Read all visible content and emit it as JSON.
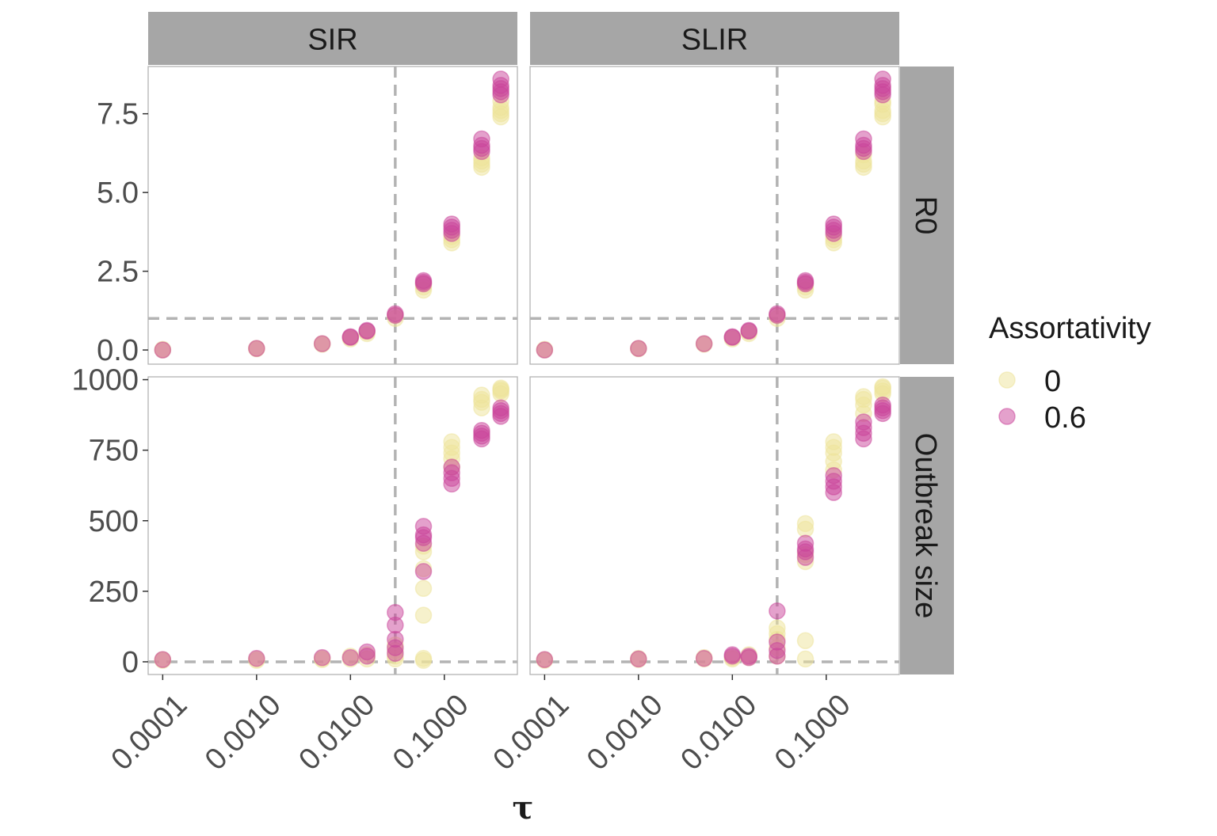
{
  "chart_data": {
    "type": "scatter",
    "xscale": "log",
    "xlabel": "τ",
    "ylabel": "",
    "facet_columns": [
      "SIR",
      "SLIR"
    ],
    "facet_rows": [
      "R0",
      "Outbreak size"
    ],
    "x_ticks": [
      0.0001,
      0.001,
      0.01,
      0.1
    ],
    "x_tick_labels": [
      "0.0001",
      "0.0010",
      "0.0100",
      "0.1000"
    ],
    "xlim": [
      7e-05,
      0.6
    ],
    "rows": [
      {
        "name": "R0",
        "ylim": [
          -0.45,
          9.0
        ],
        "y_ticks": [
          0,
          2.5,
          5,
          7.5
        ],
        "y_tick_labels": [
          "0.0",
          "2.5",
          "5.0",
          "7.5"
        ],
        "hline": 1,
        "vline": 0.03
      },
      {
        "name": "Outbreak size",
        "ylim": [
          -45,
          1010
        ],
        "y_ticks": [
          0,
          250,
          500,
          750,
          1000
        ],
        "y_tick_labels": [
          "0",
          "250",
          "500",
          "750",
          "1000"
        ],
        "hline": 0,
        "vline": 0.03
      }
    ],
    "legend": {
      "title": "Assortativity",
      "position": "right",
      "entries": [
        {
          "label": "0",
          "color": "#eee49a"
        },
        {
          "label": "0.6",
          "color": "#c9449a"
        }
      ]
    },
    "panels": [
      {
        "column": "SIR",
        "row": "R0",
        "series": [
          {
            "name": "0",
            "points": [
              [
                0.0001,
                0.0
              ],
              [
                0.0001,
                0.02
              ],
              [
                0.001,
                0.04
              ],
              [
                0.001,
                0.05
              ],
              [
                0.005,
                0.18
              ],
              [
                0.005,
                0.2
              ],
              [
                0.01,
                0.35
              ],
              [
                0.01,
                0.4
              ],
              [
                0.015,
                0.52
              ],
              [
                0.015,
                0.58
              ],
              [
                0.03,
                1.0
              ],
              [
                0.03,
                1.1
              ],
              [
                0.06,
                1.9
              ],
              [
                0.06,
                2.0
              ],
              [
                0.06,
                2.1
              ],
              [
                0.12,
                3.4
              ],
              [
                0.12,
                3.5
              ],
              [
                0.12,
                3.6
              ],
              [
                0.25,
                5.8
              ],
              [
                0.25,
                5.9
              ],
              [
                0.25,
                6.0
              ],
              [
                0.25,
                6.1
              ],
              [
                0.4,
                7.4
              ],
              [
                0.4,
                7.5
              ],
              [
                0.4,
                7.6
              ],
              [
                0.4,
                7.7
              ],
              [
                0.4,
                7.9
              ]
            ]
          },
          {
            "name": "0.6",
            "points": [
              [
                0.0001,
                0.0
              ],
              [
                0.001,
                0.05
              ],
              [
                0.005,
                0.2
              ],
              [
                0.01,
                0.4
              ],
              [
                0.01,
                0.42
              ],
              [
                0.015,
                0.6
              ],
              [
                0.015,
                0.62
              ],
              [
                0.03,
                1.1
              ],
              [
                0.03,
                1.15
              ],
              [
                0.06,
                2.1
              ],
              [
                0.06,
                2.15
              ],
              [
                0.06,
                2.2
              ],
              [
                0.12,
                3.7
              ],
              [
                0.12,
                3.8
              ],
              [
                0.12,
                3.9
              ],
              [
                0.12,
                4.0
              ],
              [
                0.25,
                6.3
              ],
              [
                0.25,
                6.4
              ],
              [
                0.25,
                6.5
              ],
              [
                0.25,
                6.7
              ],
              [
                0.4,
                8.1
              ],
              [
                0.4,
                8.2
              ],
              [
                0.4,
                8.3
              ],
              [
                0.4,
                8.4
              ],
              [
                0.4,
                8.6
              ]
            ]
          }
        ]
      },
      {
        "column": "SLIR",
        "row": "R0",
        "series": [
          {
            "name": "0",
            "points": [
              [
                0.0001,
                0.0
              ],
              [
                0.0001,
                0.02
              ],
              [
                0.001,
                0.04
              ],
              [
                0.001,
                0.05
              ],
              [
                0.005,
                0.18
              ],
              [
                0.005,
                0.2
              ],
              [
                0.01,
                0.35
              ],
              [
                0.01,
                0.4
              ],
              [
                0.015,
                0.52
              ],
              [
                0.015,
                0.58
              ],
              [
                0.03,
                1.0
              ],
              [
                0.03,
                1.1
              ],
              [
                0.06,
                1.9
              ],
              [
                0.06,
                2.0
              ],
              [
                0.06,
                2.1
              ],
              [
                0.12,
                3.4
              ],
              [
                0.12,
                3.5
              ],
              [
                0.12,
                3.6
              ],
              [
                0.25,
                5.8
              ],
              [
                0.25,
                5.9
              ],
              [
                0.25,
                6.0
              ],
              [
                0.25,
                6.2
              ],
              [
                0.4,
                7.4
              ],
              [
                0.4,
                7.5
              ],
              [
                0.4,
                7.6
              ],
              [
                0.4,
                7.8
              ],
              [
                0.4,
                7.9
              ]
            ]
          },
          {
            "name": "0.6",
            "points": [
              [
                0.0001,
                0.0
              ],
              [
                0.001,
                0.05
              ],
              [
                0.005,
                0.2
              ],
              [
                0.01,
                0.4
              ],
              [
                0.01,
                0.42
              ],
              [
                0.015,
                0.6
              ],
              [
                0.015,
                0.62
              ],
              [
                0.03,
                1.1
              ],
              [
                0.03,
                1.15
              ],
              [
                0.06,
                2.1
              ],
              [
                0.06,
                2.15
              ],
              [
                0.06,
                2.2
              ],
              [
                0.12,
                3.7
              ],
              [
                0.12,
                3.8
              ],
              [
                0.12,
                3.9
              ],
              [
                0.12,
                4.0
              ],
              [
                0.25,
                6.3
              ],
              [
                0.25,
                6.4
              ],
              [
                0.25,
                6.5
              ],
              [
                0.25,
                6.7
              ],
              [
                0.4,
                8.1
              ],
              [
                0.4,
                8.2
              ],
              [
                0.4,
                8.3
              ],
              [
                0.4,
                8.4
              ],
              [
                0.4,
                8.6
              ]
            ]
          }
        ]
      },
      {
        "column": "SIR",
        "row": "Outbreak size",
        "series": [
          {
            "name": "0",
            "points": [
              [
                0.0001,
                5
              ],
              [
                0.0001,
                8
              ],
              [
                0.001,
                5
              ],
              [
                0.001,
                10
              ],
              [
                0.005,
                8
              ],
              [
                0.005,
                12
              ],
              [
                0.01,
                10
              ],
              [
                0.01,
                20
              ],
              [
                0.015,
                10
              ],
              [
                0.015,
                25
              ],
              [
                0.03,
                10
              ],
              [
                0.03,
                20
              ],
              [
                0.03,
                40
              ],
              [
                0.03,
                60
              ],
              [
                0.06,
                5
              ],
              [
                0.06,
                12
              ],
              [
                0.06,
                165
              ],
              [
                0.06,
                260
              ],
              [
                0.06,
                330
              ],
              [
                0.06,
                390
              ],
              [
                0.06,
                410
              ],
              [
                0.12,
                690
              ],
              [
                0.12,
                720
              ],
              [
                0.12,
                740
              ],
              [
                0.12,
                760
              ],
              [
                0.12,
                780
              ],
              [
                0.25,
                900
              ],
              [
                0.25,
                920
              ],
              [
                0.25,
                930
              ],
              [
                0.25,
                945
              ],
              [
                0.4,
                950
              ],
              [
                0.4,
                960
              ],
              [
                0.4,
                965
              ],
              [
                0.4,
                970
              ]
            ]
          },
          {
            "name": "0.6",
            "points": [
              [
                0.0001,
                8
              ],
              [
                0.001,
                12
              ],
              [
                0.005,
                15
              ],
              [
                0.01,
                15
              ],
              [
                0.015,
                20
              ],
              [
                0.015,
                35
              ],
              [
                0.03,
                30
              ],
              [
                0.03,
                50
              ],
              [
                0.03,
                80
              ],
              [
                0.03,
                130
              ],
              [
                0.03,
                175
              ],
              [
                0.06,
                320
              ],
              [
                0.06,
                420
              ],
              [
                0.06,
                440
              ],
              [
                0.06,
                450
              ],
              [
                0.06,
                480
              ],
              [
                0.12,
                630
              ],
              [
                0.12,
                650
              ],
              [
                0.12,
                670
              ],
              [
                0.12,
                690
              ],
              [
                0.25,
                790
              ],
              [
                0.25,
                800
              ],
              [
                0.25,
                810
              ],
              [
                0.25,
                820
              ],
              [
                0.4,
                870
              ],
              [
                0.4,
                880
              ],
              [
                0.4,
                890
              ],
              [
                0.4,
                900
              ]
            ]
          }
        ]
      },
      {
        "column": "SLIR",
        "row": "Outbreak size",
        "series": [
          {
            "name": "0",
            "points": [
              [
                0.0001,
                5
              ],
              [
                0.0001,
                8
              ],
              [
                0.001,
                8
              ],
              [
                0.001,
                12
              ],
              [
                0.005,
                10
              ],
              [
                0.005,
                15
              ],
              [
                0.01,
                10
              ],
              [
                0.01,
                15
              ],
              [
                0.015,
                15
              ],
              [
                0.015,
                25
              ],
              [
                0.03,
                20
              ],
              [
                0.03,
                50
              ],
              [
                0.03,
                80
              ],
              [
                0.03,
                100
              ],
              [
                0.03,
                120
              ],
              [
                0.06,
                10
              ],
              [
                0.06,
                75
              ],
              [
                0.06,
                355
              ],
              [
                0.06,
                380
              ],
              [
                0.06,
                470
              ],
              [
                0.06,
                490
              ],
              [
                0.12,
                680
              ],
              [
                0.12,
                710
              ],
              [
                0.12,
                740
              ],
              [
                0.12,
                760
              ],
              [
                0.12,
                780
              ],
              [
                0.25,
                880
              ],
              [
                0.25,
                910
              ],
              [
                0.25,
                930
              ],
              [
                0.25,
                940
              ],
              [
                0.4,
                950
              ],
              [
                0.4,
                960
              ],
              [
                0.4,
                970
              ],
              [
                0.4,
                975
              ]
            ]
          },
          {
            "name": "0.6",
            "points": [
              [
                0.0001,
                8
              ],
              [
                0.001,
                10
              ],
              [
                0.005,
                12
              ],
              [
                0.01,
                20
              ],
              [
                0.01,
                25
              ],
              [
                0.015,
                15
              ],
              [
                0.015,
                20
              ],
              [
                0.03,
                20
              ],
              [
                0.03,
                40
              ],
              [
                0.03,
                70
              ],
              [
                0.03,
                180
              ],
              [
                0.06,
                370
              ],
              [
                0.06,
                390
              ],
              [
                0.06,
                400
              ],
              [
                0.06,
                420
              ],
              [
                0.12,
                600
              ],
              [
                0.12,
                620
              ],
              [
                0.12,
                640
              ],
              [
                0.12,
                660
              ],
              [
                0.25,
                790
              ],
              [
                0.25,
                810
              ],
              [
                0.25,
                830
              ],
              [
                0.25,
                850
              ],
              [
                0.4,
                880
              ],
              [
                0.4,
                890
              ],
              [
                0.4,
                900
              ],
              [
                0.4,
                910
              ]
            ]
          }
        ]
      }
    ]
  }
}
